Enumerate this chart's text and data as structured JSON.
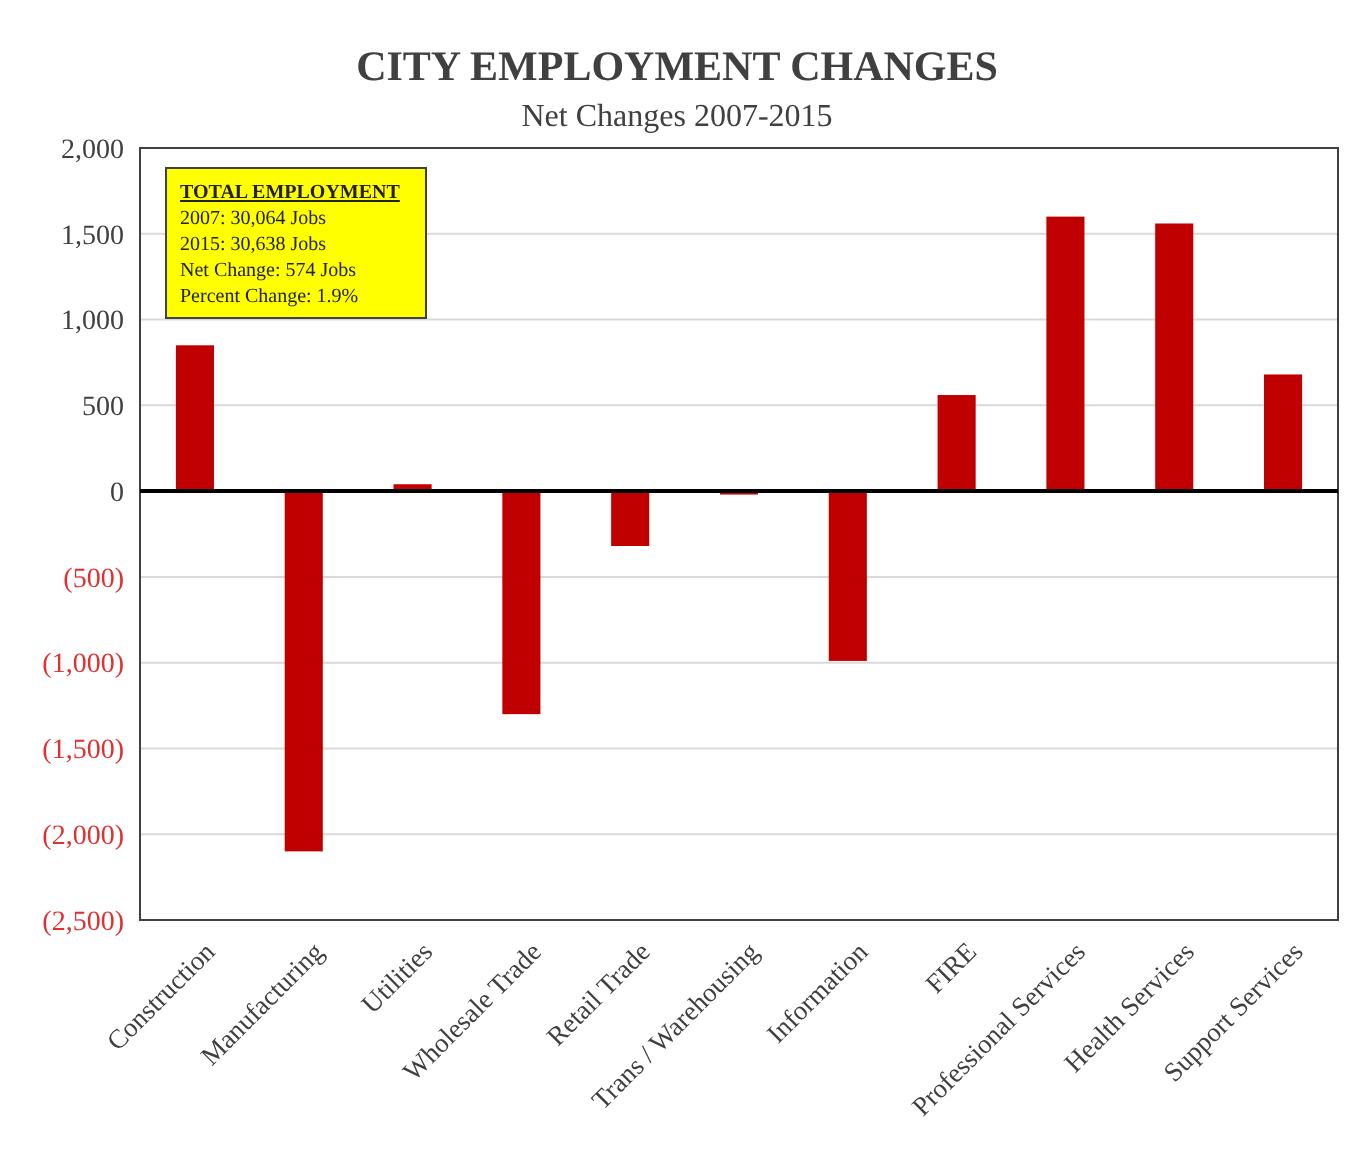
{
  "chart_data": {
    "type": "bar",
    "title": "CITY EMPLOYMENT CHANGES",
    "subtitle": "Net Changes  2007-2015",
    "categories": [
      "Construction",
      "Manufacturing",
      "Utilities",
      "Wholesale Trade",
      "Retail Trade",
      "Trans / Warehousing",
      "Information",
      "FIRE",
      "Professional Services",
      "Health Services",
      "Support Services"
    ],
    "values": [
      850,
      -2100,
      40,
      -1300,
      -320,
      -20,
      -990,
      560,
      1600,
      1560,
      680
    ],
    "color": "#c00000",
    "ylim": [
      -2500,
      2000
    ],
    "yticks": [
      {
        "value": -2500,
        "label": "(2,500)"
      },
      {
        "value": -2000,
        "label": "(2,000)"
      },
      {
        "value": -1500,
        "label": "(1,500)"
      },
      {
        "value": -1000,
        "label": "(1,000)"
      },
      {
        "value": -500,
        "label": "(500)"
      },
      {
        "value": 0,
        "label": "0"
      },
      {
        "value": 500,
        "label": "500"
      },
      {
        "value": 1000,
        "label": "1,000"
      },
      {
        "value": 1500,
        "label": "1,500"
      },
      {
        "value": 2000,
        "label": "2,000"
      }
    ],
    "grid": "y",
    "annotations": [
      "TOTAL  EMPLOYMENT",
      "2007:   30,064 Jobs",
      "2015:   30,638 Jobs",
      "Net Change:    574 Jobs",
      "Percent Change:    1.9%"
    ]
  }
}
